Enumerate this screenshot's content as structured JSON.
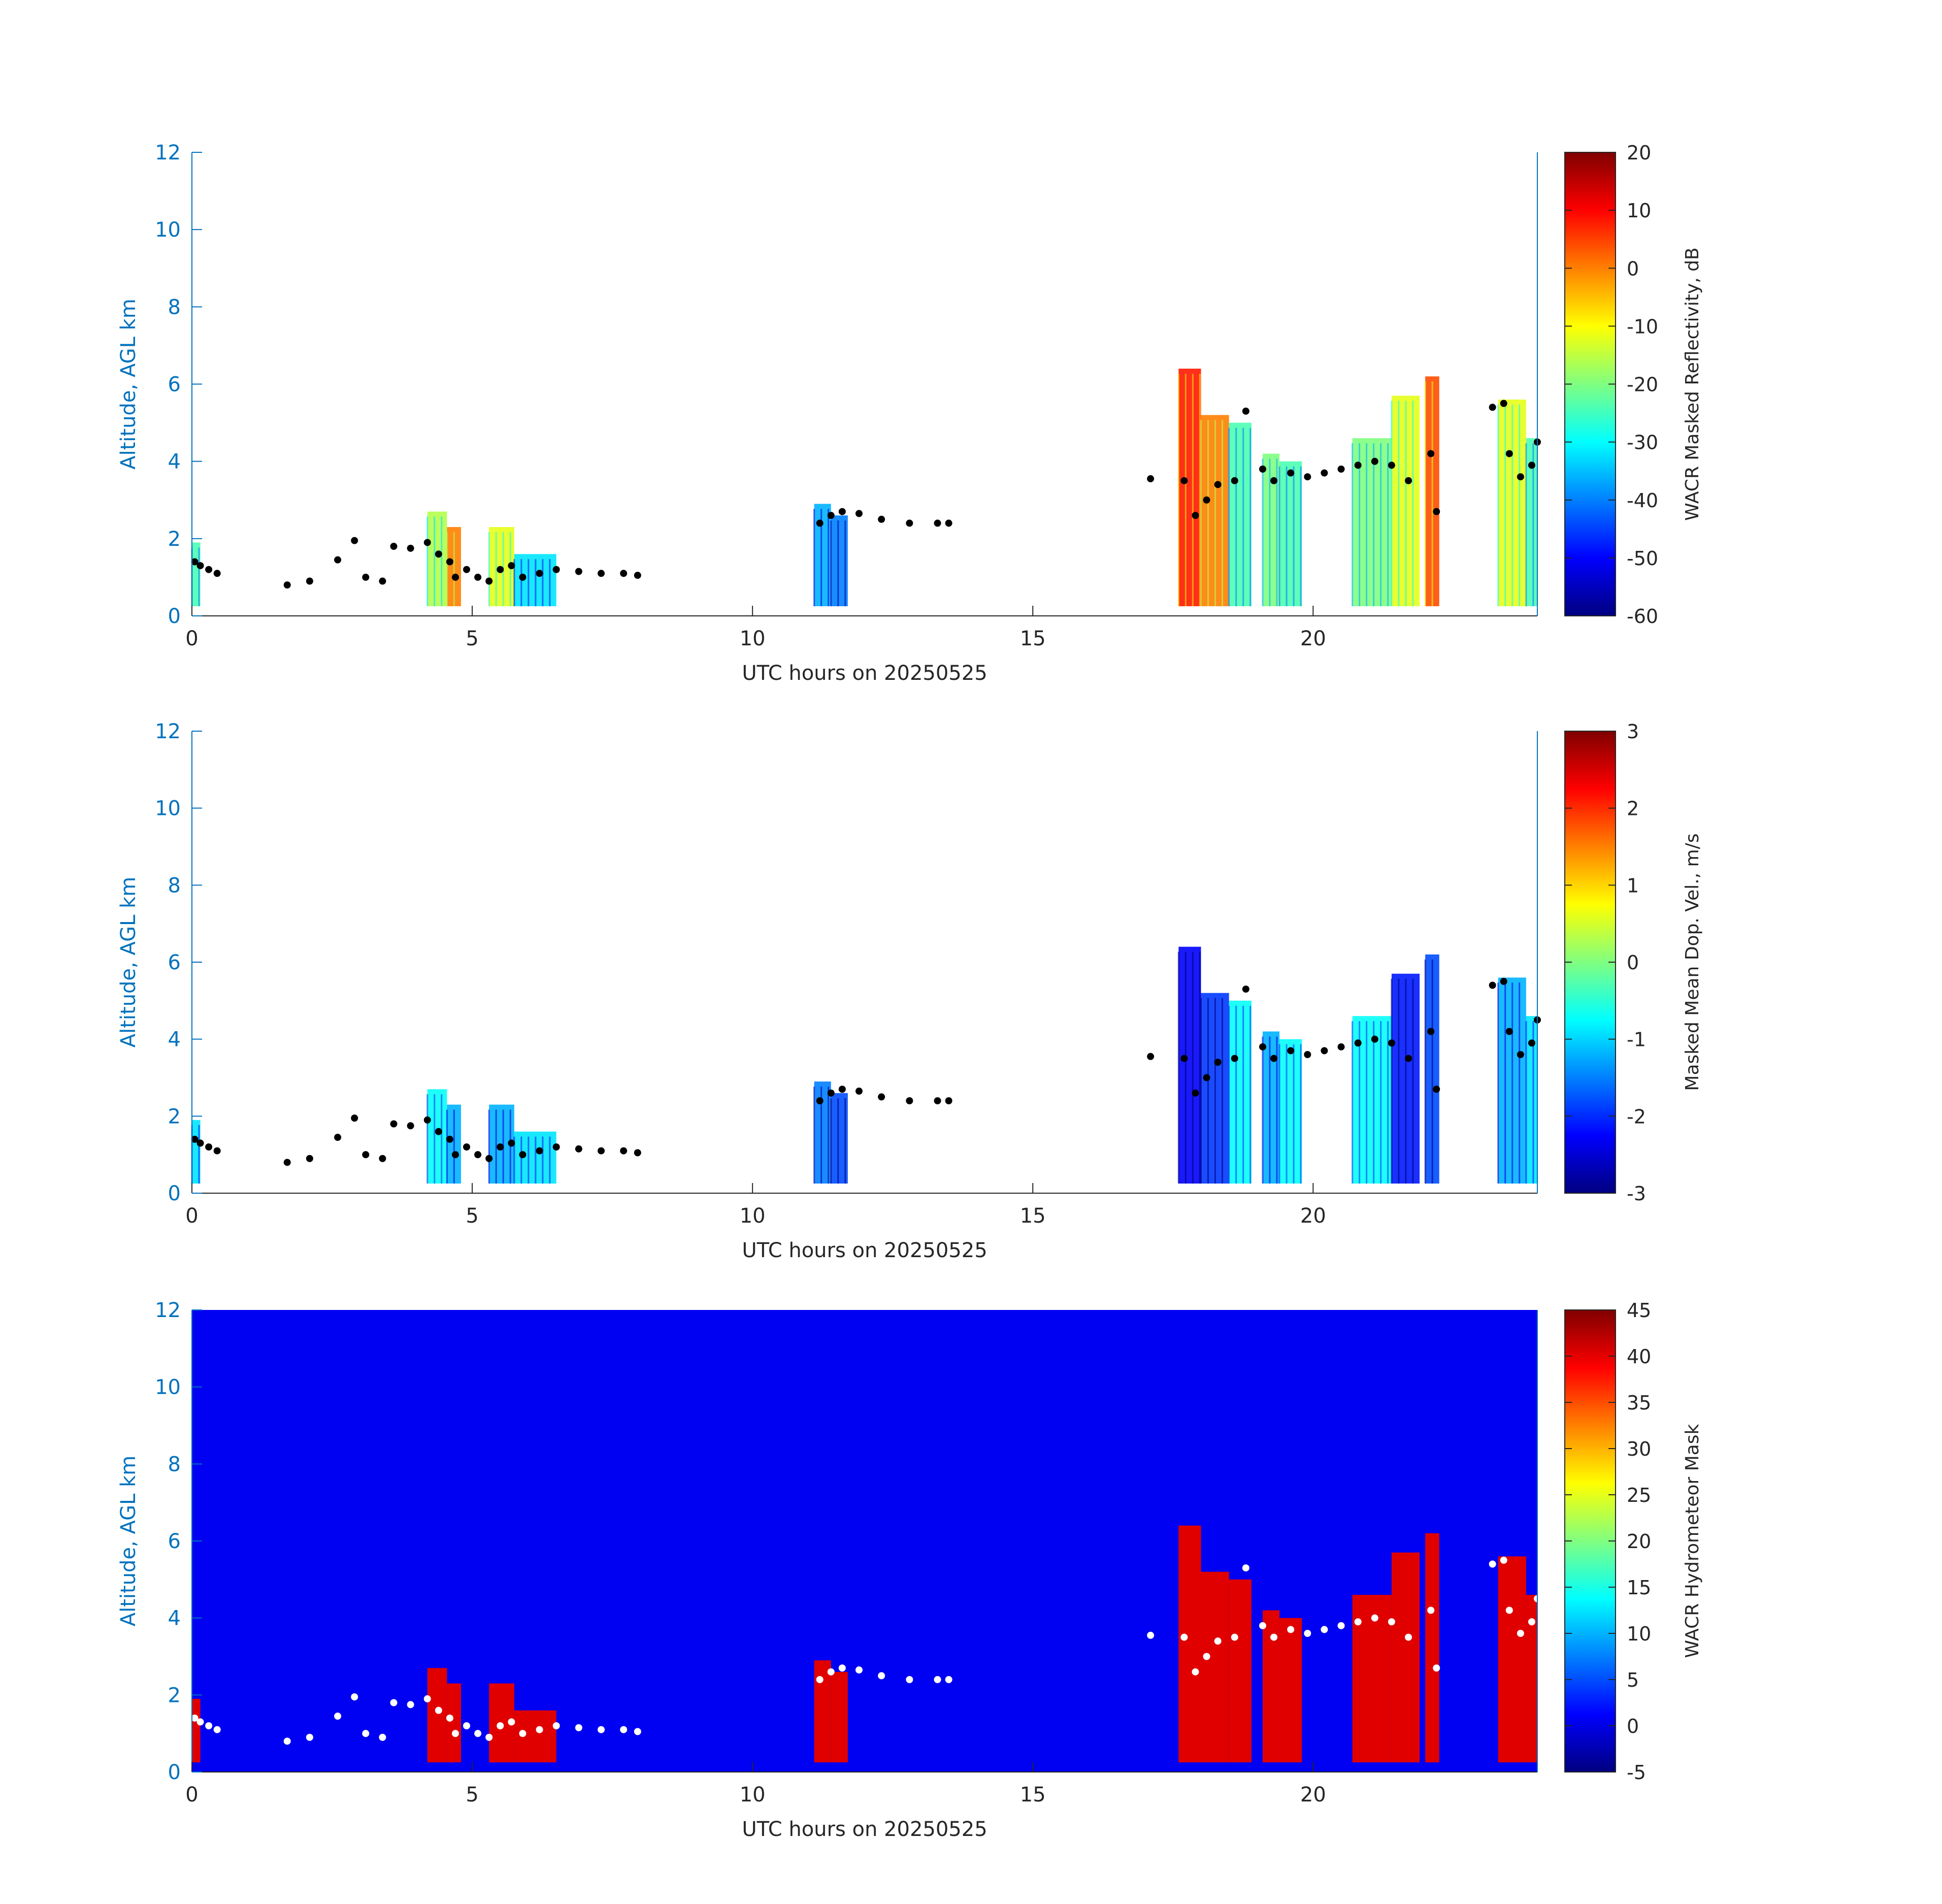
{
  "figure": {
    "background": "#ffffff",
    "axis_color": "#0072bd",
    "text_color": "#262626"
  },
  "chart_data": [
    {
      "type": "heatmap",
      "panel": "top",
      "xlabel": "UTC hours on 20250525",
      "ylabel": "Altitude, AGL km",
      "xlim": [
        0,
        24
      ],
      "ylim": [
        0,
        12
      ],
      "xticks": [
        0,
        5,
        10,
        15,
        20
      ],
      "yticks": [
        0,
        2,
        4,
        6,
        8,
        10,
        12
      ],
      "colormap": "jet",
      "background": "#ffffff",
      "colorbar": {
        "label": "WACR Masked Reflectivity, dB",
        "range": [
          -60,
          20
        ],
        "ticks": [
          20,
          10,
          0,
          -10,
          -20,
          -30,
          -40,
          -50,
          -60
        ]
      },
      "marker_color": "#000000",
      "echo_columns": [
        {
          "x0": 0.0,
          "x1": 0.15,
          "top": 1.9,
          "value": 0.45
        },
        {
          "x0": 4.2,
          "x1": 4.55,
          "top": 2.7,
          "value": 0.55
        },
        {
          "x0": 4.55,
          "x1": 4.8,
          "top": 2.3,
          "value": 0.75
        },
        {
          "x0": 5.3,
          "x1": 5.75,
          "top": 2.3,
          "value": 0.6
        },
        {
          "x0": 5.75,
          "x1": 6.5,
          "top": 1.6,
          "value": 0.35
        },
        {
          "x0": 11.1,
          "x1": 11.4,
          "top": 2.9,
          "value": 0.3
        },
        {
          "x0": 11.4,
          "x1": 11.7,
          "top": 2.6,
          "value": 0.25
        },
        {
          "x0": 17.6,
          "x1": 18.0,
          "top": 6.4,
          "value": 0.85
        },
        {
          "x0": 18.0,
          "x1": 18.5,
          "top": 5.2,
          "value": 0.75
        },
        {
          "x0": 18.5,
          "x1": 18.9,
          "top": 5.0,
          "value": 0.45
        },
        {
          "x0": 19.1,
          "x1": 19.4,
          "top": 4.2,
          "value": 0.5
        },
        {
          "x0": 19.4,
          "x1": 19.8,
          "top": 4.0,
          "value": 0.45
        },
        {
          "x0": 20.7,
          "x1": 21.4,
          "top": 4.6,
          "value": 0.5
        },
        {
          "x0": 21.4,
          "x1": 21.9,
          "top": 5.7,
          "value": 0.6
        },
        {
          "x0": 22.0,
          "x1": 22.25,
          "top": 6.2,
          "value": 0.8
        },
        {
          "x0": 23.3,
          "x1": 23.8,
          "top": 5.6,
          "value": 0.6
        },
        {
          "x0": 23.8,
          "x1": 24.0,
          "top": 4.6,
          "value": 0.45
        }
      ],
      "cloud_base_points": [
        [
          0.05,
          1.4
        ],
        [
          0.15,
          1.3
        ],
        [
          0.3,
          1.2
        ],
        [
          0.45,
          1.1
        ],
        [
          1.7,
          0.8
        ],
        [
          2.1,
          0.9
        ],
        [
          2.6,
          1.45
        ],
        [
          2.9,
          1.95
        ],
        [
          3.1,
          1.0
        ],
        [
          3.4,
          0.9
        ],
        [
          3.6,
          1.8
        ],
        [
          3.9,
          1.75
        ],
        [
          4.2,
          1.9
        ],
        [
          4.4,
          1.6
        ],
        [
          4.6,
          1.4
        ],
        [
          4.7,
          1.0
        ],
        [
          4.9,
          1.2
        ],
        [
          5.1,
          1.0
        ],
        [
          5.3,
          0.9
        ],
        [
          5.5,
          1.2
        ],
        [
          5.7,
          1.3
        ],
        [
          5.9,
          1.0
        ],
        [
          6.2,
          1.1
        ],
        [
          6.5,
          1.2
        ],
        [
          6.9,
          1.15
        ],
        [
          7.3,
          1.1
        ],
        [
          7.7,
          1.1
        ],
        [
          7.95,
          1.05
        ],
        [
          11.2,
          2.4
        ],
        [
          11.4,
          2.6
        ],
        [
          11.6,
          2.7
        ],
        [
          11.9,
          2.65
        ],
        [
          12.3,
          2.5
        ],
        [
          12.8,
          2.4
        ],
        [
          13.3,
          2.4
        ],
        [
          13.5,
          2.4
        ],
        [
          17.1,
          3.55
        ],
        [
          17.7,
          3.5
        ],
        [
          17.9,
          2.6
        ],
        [
          18.1,
          3.0
        ],
        [
          18.3,
          3.4
        ],
        [
          18.6,
          3.5
        ],
        [
          18.8,
          5.3
        ],
        [
          19.1,
          3.8
        ],
        [
          19.3,
          3.5
        ],
        [
          19.6,
          3.7
        ],
        [
          19.9,
          3.6
        ],
        [
          20.2,
          3.7
        ],
        [
          20.5,
          3.8
        ],
        [
          20.8,
          3.9
        ],
        [
          21.1,
          4.0
        ],
        [
          21.4,
          3.9
        ],
        [
          21.7,
          3.5
        ],
        [
          22.1,
          4.2
        ],
        [
          22.2,
          2.7
        ],
        [
          23.2,
          5.4
        ],
        [
          23.4,
          5.5
        ],
        [
          23.5,
          4.2
        ],
        [
          23.7,
          3.6
        ],
        [
          23.9,
          3.9
        ],
        [
          24.0,
          4.5
        ]
      ]
    },
    {
      "type": "heatmap",
      "panel": "middle",
      "xlabel": "UTC hours on 20250525",
      "ylabel": "Altitude, AGL km",
      "xlim": [
        0,
        24
      ],
      "ylim": [
        0,
        12
      ],
      "xticks": [
        0,
        5,
        10,
        15,
        20
      ],
      "yticks": [
        0,
        2,
        4,
        6,
        8,
        10,
        12
      ],
      "colormap": "jet",
      "background": "#ffffff",
      "colorbar": {
        "label": "Masked Mean Dop. Vel., m/s",
        "range": [
          -3,
          3
        ],
        "ticks": [
          3,
          2,
          1,
          0,
          -1,
          -2,
          -3
        ]
      },
      "marker_color": "#000000",
      "echo_columns": [
        {
          "x0": 0.0,
          "x1": 0.15,
          "top": 1.9,
          "value": 0.35
        },
        {
          "x0": 4.2,
          "x1": 4.55,
          "top": 2.7,
          "value": 0.38
        },
        {
          "x0": 4.55,
          "x1": 4.8,
          "top": 2.3,
          "value": 0.3
        },
        {
          "x0": 5.3,
          "x1": 5.75,
          "top": 2.3,
          "value": 0.3
        },
        {
          "x0": 5.75,
          "x1": 6.5,
          "top": 1.6,
          "value": 0.35
        },
        {
          "x0": 11.1,
          "x1": 11.4,
          "top": 2.9,
          "value": 0.25
        },
        {
          "x0": 11.4,
          "x1": 11.7,
          "top": 2.6,
          "value": 0.2
        },
        {
          "x0": 17.6,
          "x1": 18.0,
          "top": 6.4,
          "value": 0.12
        },
        {
          "x0": 18.0,
          "x1": 18.5,
          "top": 5.2,
          "value": 0.18
        },
        {
          "x0": 18.5,
          "x1": 18.9,
          "top": 5.0,
          "value": 0.38
        },
        {
          "x0": 19.1,
          "x1": 19.4,
          "top": 4.2,
          "value": 0.3
        },
        {
          "x0": 19.4,
          "x1": 19.8,
          "top": 4.0,
          "value": 0.38
        },
        {
          "x0": 20.7,
          "x1": 21.4,
          "top": 4.6,
          "value": 0.38
        },
        {
          "x0": 21.4,
          "x1": 21.9,
          "top": 5.7,
          "value": 0.15
        },
        {
          "x0": 22.0,
          "x1": 22.25,
          "top": 6.2,
          "value": 0.2
        },
        {
          "x0": 23.3,
          "x1": 23.8,
          "top": 5.6,
          "value": 0.3
        },
        {
          "x0": 23.8,
          "x1": 24.0,
          "top": 4.6,
          "value": 0.35
        }
      ],
      "cloud_base_points": [
        [
          0.05,
          1.4
        ],
        [
          0.15,
          1.3
        ],
        [
          0.3,
          1.2
        ],
        [
          0.45,
          1.1
        ],
        [
          1.7,
          0.8
        ],
        [
          2.1,
          0.9
        ],
        [
          2.6,
          1.45
        ],
        [
          2.9,
          1.95
        ],
        [
          3.1,
          1.0
        ],
        [
          3.4,
          0.9
        ],
        [
          3.6,
          1.8
        ],
        [
          3.9,
          1.75
        ],
        [
          4.2,
          1.9
        ],
        [
          4.4,
          1.6
        ],
        [
          4.6,
          1.4
        ],
        [
          4.7,
          1.0
        ],
        [
          4.9,
          1.2
        ],
        [
          5.1,
          1.0
        ],
        [
          5.3,
          0.9
        ],
        [
          5.5,
          1.2
        ],
        [
          5.7,
          1.3
        ],
        [
          5.9,
          1.0
        ],
        [
          6.2,
          1.1
        ],
        [
          6.5,
          1.2
        ],
        [
          6.9,
          1.15
        ],
        [
          7.3,
          1.1
        ],
        [
          7.7,
          1.1
        ],
        [
          7.95,
          1.05
        ],
        [
          11.2,
          2.4
        ],
        [
          11.4,
          2.6
        ],
        [
          11.6,
          2.7
        ],
        [
          11.9,
          2.65
        ],
        [
          12.3,
          2.5
        ],
        [
          12.8,
          2.4
        ],
        [
          13.3,
          2.4
        ],
        [
          13.5,
          2.4
        ],
        [
          17.1,
          3.55
        ],
        [
          17.7,
          3.5
        ],
        [
          17.9,
          2.6
        ],
        [
          18.1,
          3.0
        ],
        [
          18.3,
          3.4
        ],
        [
          18.6,
          3.5
        ],
        [
          18.8,
          5.3
        ],
        [
          19.1,
          3.8
        ],
        [
          19.3,
          3.5
        ],
        [
          19.6,
          3.7
        ],
        [
          19.9,
          3.6
        ],
        [
          20.2,
          3.7
        ],
        [
          20.5,
          3.8
        ],
        [
          20.8,
          3.9
        ],
        [
          21.1,
          4.0
        ],
        [
          21.4,
          3.9
        ],
        [
          21.7,
          3.5
        ],
        [
          22.1,
          4.2
        ],
        [
          22.2,
          2.7
        ],
        [
          23.2,
          5.4
        ],
        [
          23.4,
          5.5
        ],
        [
          23.5,
          4.2
        ],
        [
          23.7,
          3.6
        ],
        [
          23.9,
          3.9
        ],
        [
          24.0,
          4.5
        ]
      ]
    },
    {
      "type": "heatmap",
      "panel": "bottom",
      "xlabel": "UTC hours on 20250525",
      "ylabel": "Altitude, AGL km",
      "xlim": [
        0,
        24
      ],
      "ylim": [
        0,
        12
      ],
      "xticks": [
        0,
        5,
        10,
        15,
        20
      ],
      "yticks": [
        0,
        2,
        4,
        6,
        8,
        10,
        12
      ],
      "colormap": "jet",
      "background": "#0000f2",
      "colorbar": {
        "label": "WACR Hydrometeor Mask",
        "range": [
          -5,
          45
        ],
        "ticks": [
          45,
          40,
          35,
          30,
          25,
          20,
          15,
          10,
          5,
          0,
          -5
        ]
      },
      "marker_color": "#ffffff",
      "echo_color": "#e00000",
      "echo_columns": [
        {
          "x0": 0.0,
          "x1": 0.15,
          "top": 1.9,
          "value": 1
        },
        {
          "x0": 4.2,
          "x1": 4.55,
          "top": 2.7,
          "value": 1
        },
        {
          "x0": 4.55,
          "x1": 4.8,
          "top": 2.3,
          "value": 1
        },
        {
          "x0": 5.3,
          "x1": 5.75,
          "top": 2.3,
          "value": 1
        },
        {
          "x0": 5.75,
          "x1": 6.5,
          "top": 1.6,
          "value": 1
        },
        {
          "x0": 11.1,
          "x1": 11.4,
          "top": 2.9,
          "value": 1
        },
        {
          "x0": 11.4,
          "x1": 11.7,
          "top": 2.6,
          "value": 1
        },
        {
          "x0": 17.6,
          "x1": 18.0,
          "top": 6.4,
          "value": 1
        },
        {
          "x0": 18.0,
          "x1": 18.5,
          "top": 5.2,
          "value": 1
        },
        {
          "x0": 18.5,
          "x1": 18.9,
          "top": 5.0,
          "value": 1
        },
        {
          "x0": 19.1,
          "x1": 19.4,
          "top": 4.2,
          "value": 1
        },
        {
          "x0": 19.4,
          "x1": 19.8,
          "top": 4.0,
          "value": 1
        },
        {
          "x0": 20.7,
          "x1": 21.4,
          "top": 4.6,
          "value": 1
        },
        {
          "x0": 21.4,
          "x1": 21.9,
          "top": 5.7,
          "value": 1
        },
        {
          "x0": 22.0,
          "x1": 22.25,
          "top": 6.2,
          "value": 1
        },
        {
          "x0": 23.3,
          "x1": 23.8,
          "top": 5.6,
          "value": 1
        },
        {
          "x0": 23.8,
          "x1": 24.0,
          "top": 4.6,
          "value": 1
        }
      ],
      "cloud_base_points": [
        [
          0.05,
          1.4
        ],
        [
          0.15,
          1.3
        ],
        [
          0.3,
          1.2
        ],
        [
          0.45,
          1.1
        ],
        [
          1.7,
          0.8
        ],
        [
          2.1,
          0.9
        ],
        [
          2.6,
          1.45
        ],
        [
          2.9,
          1.95
        ],
        [
          3.1,
          1.0
        ],
        [
          3.4,
          0.9
        ],
        [
          3.6,
          1.8
        ],
        [
          3.9,
          1.75
        ],
        [
          4.2,
          1.9
        ],
        [
          4.4,
          1.6
        ],
        [
          4.6,
          1.4
        ],
        [
          4.7,
          1.0
        ],
        [
          4.9,
          1.2
        ],
        [
          5.1,
          1.0
        ],
        [
          5.3,
          0.9
        ],
        [
          5.5,
          1.2
        ],
        [
          5.7,
          1.3
        ],
        [
          5.9,
          1.0
        ],
        [
          6.2,
          1.1
        ],
        [
          6.5,
          1.2
        ],
        [
          6.9,
          1.15
        ],
        [
          7.3,
          1.1
        ],
        [
          7.7,
          1.1
        ],
        [
          7.95,
          1.05
        ],
        [
          11.2,
          2.4
        ],
        [
          11.4,
          2.6
        ],
        [
          11.6,
          2.7
        ],
        [
          11.9,
          2.65
        ],
        [
          12.3,
          2.5
        ],
        [
          12.8,
          2.4
        ],
        [
          13.3,
          2.4
        ],
        [
          13.5,
          2.4
        ],
        [
          17.1,
          3.55
        ],
        [
          17.7,
          3.5
        ],
        [
          17.9,
          2.6
        ],
        [
          18.1,
          3.0
        ],
        [
          18.3,
          3.4
        ],
        [
          18.6,
          3.5
        ],
        [
          18.8,
          5.3
        ],
        [
          19.1,
          3.8
        ],
        [
          19.3,
          3.5
        ],
        [
          19.6,
          3.7
        ],
        [
          19.9,
          3.6
        ],
        [
          20.2,
          3.7
        ],
        [
          20.5,
          3.8
        ],
        [
          20.8,
          3.9
        ],
        [
          21.1,
          4.0
        ],
        [
          21.4,
          3.9
        ],
        [
          21.7,
          3.5
        ],
        [
          22.1,
          4.2
        ],
        [
          22.2,
          2.7
        ],
        [
          23.2,
          5.4
        ],
        [
          23.4,
          5.5
        ],
        [
          23.5,
          4.2
        ],
        [
          23.7,
          3.6
        ],
        [
          23.9,
          3.9
        ],
        [
          24.0,
          4.5
        ]
      ]
    }
  ]
}
